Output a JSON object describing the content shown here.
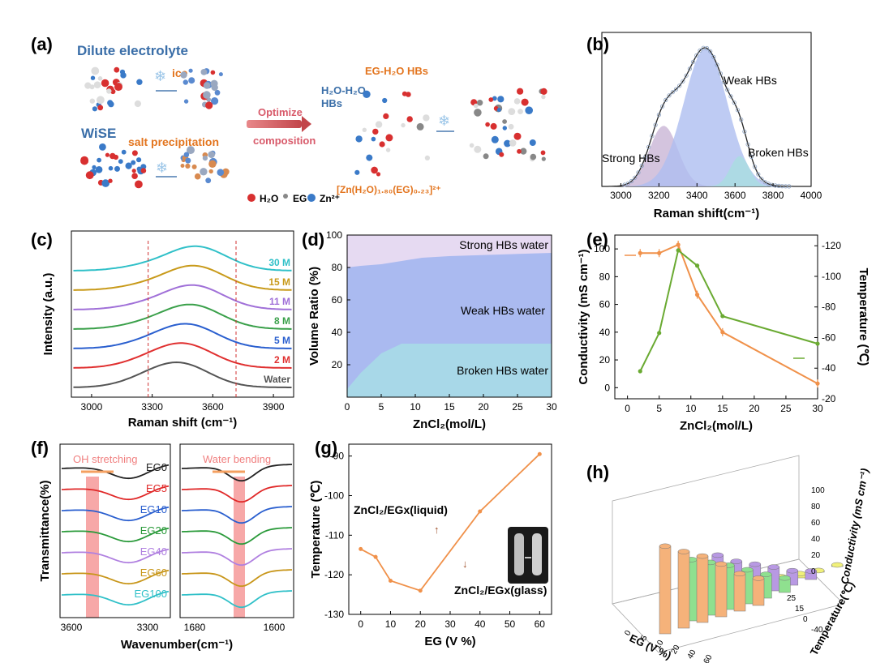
{
  "panel_labels": [
    "(a)",
    "(b)",
    "(c)",
    "(d)",
    "(e)",
    "(f)",
    "(g)",
    "(h)"
  ],
  "colors": {
    "orange": "#f0914a",
    "green": "#6aaa32",
    "blue_text": "#3a6ea8",
    "orange_text": "#e3751f",
    "pink_text": "#d85a6a",
    "ice_blue": "#9cc6e8"
  },
  "panel_a": {
    "dilute": "Dilute electrolyte",
    "ice": "ice",
    "wise": "WiSE",
    "salt": "salt precipitation",
    "optimize": "Optimize",
    "composition": "composition",
    "eg_h2o": "EG-H₂O HBs",
    "h2o_h2o": "H₂O-H₂O",
    "hbs": "HBs",
    "complex": "[Zn(H₂O)₁.₈₀(EG)₀.₂₃]²⁺",
    "legend_h2o": "H₂O",
    "legend_eg": "EG",
    "legend_zn": "Zn²⁺"
  },
  "chart_data": [
    {
      "panel": "b",
      "type": "area",
      "xlabel": "Raman shift(cm⁻¹)",
      "xlim": [
        2900,
        4000
      ],
      "xticks": [
        3000,
        3200,
        3400,
        3600,
        3800,
        4000
      ],
      "components": [
        {
          "name": "Strong HBs",
          "center": 3225,
          "height": 0.44,
          "width": 75,
          "color": "#c9b5d6"
        },
        {
          "name": "Weak HBs",
          "center": 3445,
          "height": 1.0,
          "width": 115,
          "color": "#aebef0"
        },
        {
          "name": "Broken HBs",
          "center": 3625,
          "height": 0.22,
          "width": 50,
          "color": "#a9dde0"
        }
      ]
    },
    {
      "panel": "c",
      "type": "line",
      "xlabel": "Raman shift (cm⁻¹)",
      "ylabel": "Intensity (a.u.)",
      "xlim": [
        2900,
        4000
      ],
      "xticks": [
        3000,
        3300,
        3600,
        3900
      ],
      "dashed_lines": [
        3280,
        3715
      ],
      "series": [
        {
          "name": "Water",
          "color": "#555555",
          "peak": 3430
        },
        {
          "name": "2 M",
          "color": "#e03030",
          "peak": 3450
        },
        {
          "name": "5 M",
          "color": "#2a5fcf",
          "peak": 3470
        },
        {
          "name": "8 M",
          "color": "#3aa04a",
          "peak": 3490
        },
        {
          "name": "11 M",
          "color": "#a070d8",
          "peak": 3500
        },
        {
          "name": "15 M",
          "color": "#c89a1a",
          "peak": 3505
        },
        {
          "name": "30 M",
          "color": "#30c0c8",
          "peak": 3515
        }
      ]
    },
    {
      "panel": "d",
      "type": "area",
      "xlabel": "ZnCl₂(mol/L)",
      "ylabel": "Volume Ratio (%)",
      "xlim": [
        0,
        30
      ],
      "ylim": [
        0,
        100
      ],
      "x": [
        0,
        2,
        5,
        8,
        11,
        15,
        30
      ],
      "broken_top": [
        5,
        15,
        27,
        33,
        33,
        33,
        33
      ],
      "weak_top": [
        80,
        81,
        82,
        84,
        86,
        87,
        89
      ],
      "labels": [
        "Strong HBs water",
        "Weak HBs water",
        "Broken HBs water"
      ]
    },
    {
      "panel": "e",
      "type": "line",
      "xlabel": "ZnCl₂(mol/L)",
      "ylabel": "Conductivity (mS cm⁻¹)",
      "y2label": "Temperature (℃)",
      "xlim": [
        -2,
        30
      ],
      "ylim": [
        -8,
        110
      ],
      "y2lim": [
        -20,
        -127
      ],
      "x": [
        2,
        5,
        8,
        11,
        15,
        30
      ],
      "conductivity": [
        97,
        97,
        103,
        67,
        40,
        3
      ],
      "temperature": [
        -38,
        -63,
        -117,
        -107,
        -74,
        -56
      ],
      "xticks": [
        0,
        5,
        10,
        15,
        20,
        25,
        30
      ],
      "yticks": [
        0,
        20,
        40,
        60,
        80,
        100
      ],
      "y2ticks": [
        -20,
        -40,
        -60,
        -80,
        -100,
        -120
      ]
    },
    {
      "panel": "f",
      "type": "line",
      "xlabel": "Wavenumber(cm⁻¹)",
      "ylabel": "Transmittance(%)",
      "left_title": "OH stretching",
      "right_title": "Water bending",
      "left_xticks": [
        3600,
        3300
      ],
      "right_xticks": [
        1680,
        1600
      ],
      "series": [
        {
          "name": "EG0",
          "color": "#222222"
        },
        {
          "name": "EG5",
          "color": "#e02828"
        },
        {
          "name": "EG10",
          "color": "#2a5fcf"
        },
        {
          "name": "EG20",
          "color": "#2a9a3a"
        },
        {
          "name": "EG40",
          "color": "#b080e0"
        },
        {
          "name": "EG60",
          "color": "#c8961a"
        },
        {
          "name": "EG100",
          "color": "#30c0c8"
        }
      ]
    },
    {
      "panel": "g",
      "type": "line",
      "xlabel": "EG (V %)",
      "ylabel": "Temperature (℃)",
      "xlim": [
        -4,
        64
      ],
      "ylim": [
        -130,
        -87
      ],
      "x": [
        0,
        5,
        10,
        20,
        40,
        60
      ],
      "y": [
        -113.5,
        -115.5,
        -121.5,
        -124,
        -104,
        -89.5
      ],
      "xticks": [
        0,
        10,
        20,
        30,
        40,
        50,
        60
      ],
      "yticks": [
        -90,
        -100,
        -110,
        -120,
        -130
      ],
      "liquid_label": "ZnCl₂/EGx(liquid)",
      "glass_label": "ZnCl₂/EGx(glass)"
    },
    {
      "panel": "h",
      "type": "bar",
      "xlabel": "EG (V %)",
      "ylabel": "Temperature(℃)",
      "zlabel": "Conductivity (mS cm⁻¹)",
      "x_ticks": [
        "0",
        "5",
        "10",
        "20",
        "40",
        "60"
      ],
      "y_ticks": [
        "-40",
        "0",
        "15",
        "25"
      ],
      "z_ticks": [
        "0",
        "20",
        "40",
        "60",
        "80",
        "100"
      ],
      "series": [
        {
          "name": "25",
          "color": "#f5b27a",
          "values": [
            103,
            90,
            78,
            62,
            44,
            32
          ]
        },
        {
          "name": "15",
          "color": "#8fe08f",
          "values": [
            72,
            62,
            52,
            40,
            28,
            17
          ]
        },
        {
          "name": "0",
          "color": "#b899e3",
          "values": [
            62,
            48,
            38,
            28,
            17,
            10
          ]
        },
        {
          "name": "-40",
          "color": "#f0f07a",
          "values": [
            12,
            10,
            8,
            5,
            2,
            1
          ]
        }
      ]
    }
  ]
}
